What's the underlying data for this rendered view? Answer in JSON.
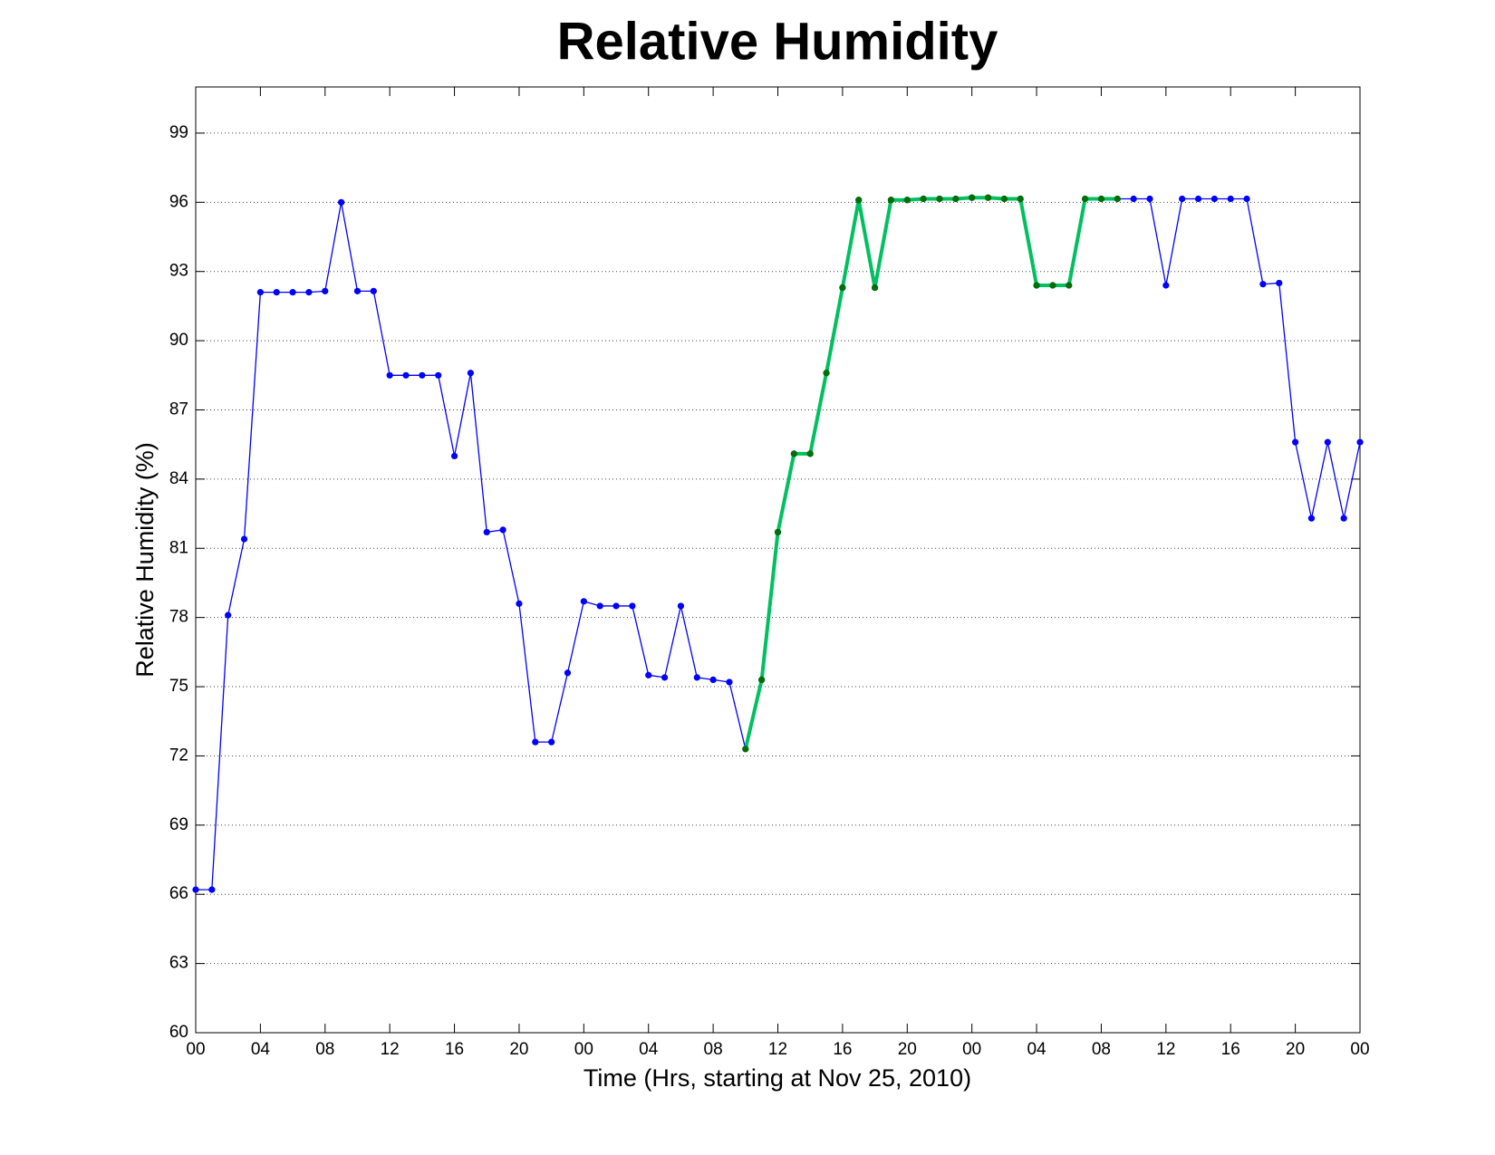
{
  "chart_data": {
    "type": "line",
    "title": "Relative Humidity",
    "xlabel": "Time (Hrs, starting at Nov 25, 2010)",
    "ylabel": "Relative Humidity (%)",
    "x": [
      0,
      1,
      2,
      3,
      4,
      5,
      6,
      7,
      8,
      9,
      10,
      11,
      12,
      13,
      14,
      15,
      16,
      17,
      18,
      19,
      20,
      21,
      22,
      23,
      24,
      25,
      26,
      27,
      28,
      29,
      30,
      31,
      32,
      33,
      34,
      35,
      36,
      37,
      38,
      39,
      40,
      41,
      42,
      43,
      44,
      45,
      46,
      47,
      48,
      49,
      50,
      51,
      52,
      53,
      54,
      55,
      56,
      57,
      58,
      59,
      60,
      61,
      62,
      63,
      64,
      65,
      66,
      67,
      68,
      69,
      70,
      71,
      72
    ],
    "series": [
      {
        "color": "#0000ff",
        "marker_color": "#0000ff",
        "line_width": 1.3,
        "values": [
          66.2,
          66.2,
          78.1,
          81.4,
          92.1,
          92.1,
          92.1,
          92.1,
          92.15,
          96.0,
          92.15,
          92.15,
          88.5,
          88.5,
          88.5,
          88.5,
          85.0,
          88.6,
          81.7,
          81.8,
          78.6,
          72.6,
          72.6,
          75.6,
          78.7,
          78.5,
          78.5,
          78.5,
          75.5,
          75.4,
          78.5,
          75.4,
          75.3,
          75.2,
          72.3,
          75.3,
          81.7,
          85.1,
          85.1,
          88.6,
          92.3,
          96.1,
          92.3,
          96.1,
          96.1,
          96.15,
          96.15,
          96.15,
          96.2,
          96.2,
          96.15,
          96.15,
          92.4,
          92.4,
          92.4,
          96.15,
          96.15,
          96.15,
          96.15,
          96.15,
          92.4,
          96.15,
          96.15,
          96.15,
          96.15,
          96.15,
          92.45,
          92.5,
          85.6,
          82.3,
          85.6,
          82.3,
          85.6
        ]
      },
      {
        "color": "#00c060",
        "marker_color": "#007000",
        "line_width": 4,
        "values": [
          null,
          null,
          null,
          null,
          null,
          null,
          null,
          null,
          null,
          null,
          null,
          null,
          null,
          null,
          null,
          null,
          null,
          null,
          null,
          null,
          null,
          null,
          null,
          null,
          null,
          null,
          null,
          null,
          null,
          null,
          null,
          null,
          null,
          null,
          72.3,
          75.3,
          81.7,
          85.1,
          85.1,
          88.6,
          92.3,
          96.1,
          92.3,
          96.1,
          96.1,
          96.15,
          96.15,
          96.15,
          96.2,
          96.2,
          96.15,
          96.15,
          92.4,
          92.4,
          92.4,
          96.15,
          96.15,
          96.15,
          null,
          null,
          null,
          null,
          null,
          null,
          null,
          null,
          null,
          null,
          null,
          null,
          null,
          null,
          null
        ]
      }
    ],
    "xlim": [
      0,
      72
    ],
    "xticks": [
      {
        "value": 0,
        "label": "00"
      },
      {
        "value": 4,
        "label": "04"
      },
      {
        "value": 8,
        "label": "08"
      },
      {
        "value": 12,
        "label": "12"
      },
      {
        "value": 16,
        "label": "16"
      },
      {
        "value": 20,
        "label": "20"
      },
      {
        "value": 24,
        "label": "00"
      },
      {
        "value": 28,
        "label": "04"
      },
      {
        "value": 32,
        "label": "08"
      },
      {
        "value": 36,
        "label": "12"
      },
      {
        "value": 40,
        "label": "16"
      },
      {
        "value": 44,
        "label": "20"
      },
      {
        "value": 48,
        "label": "00"
      },
      {
        "value": 52,
        "label": "04"
      },
      {
        "value": 56,
        "label": "08"
      },
      {
        "value": 60,
        "label": "12"
      },
      {
        "value": 64,
        "label": "16"
      },
      {
        "value": 68,
        "label": "20"
      },
      {
        "value": 72,
        "label": "00"
      }
    ],
    "ylim": [
      60,
      101
    ],
    "yticks": [
      60,
      63,
      66,
      69,
      72,
      75,
      78,
      81,
      84,
      87,
      90,
      93,
      96,
      99
    ],
    "grid": true
  }
}
